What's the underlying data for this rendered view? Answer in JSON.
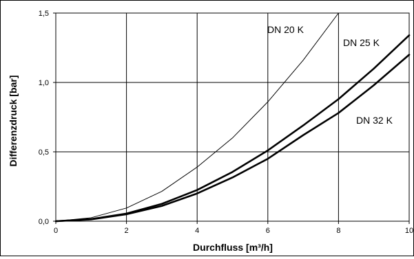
{
  "chart_data": {
    "type": "line",
    "xlabel": "Durchfluss [m³/h]",
    "ylabel": "Differenzdruck [bar]",
    "xlim": [
      0,
      10
    ],
    "ylim": [
      0,
      1.5
    ],
    "grid": true,
    "x_ticks": [
      0,
      2,
      4,
      6,
      8,
      10
    ],
    "x_tick_labels": [
      "0",
      "2",
      "4",
      "6",
      "8",
      "10"
    ],
    "y_ticks": [
      0,
      0.5,
      1.0,
      1.5
    ],
    "y_tick_labels": [
      "0,0",
      "0,5",
      "1,0",
      "1,5"
    ],
    "series": [
      {
        "name": "DN 20 K",
        "x": [
          0,
          1,
          2,
          3,
          4,
          5,
          6,
          7,
          8
        ],
        "y": [
          0,
          0.025,
          0.095,
          0.215,
          0.39,
          0.6,
          0.86,
          1.16,
          1.5
        ]
      },
      {
        "name": "DN 25 K",
        "x": [
          0,
          1,
          2,
          3,
          4,
          5,
          6,
          7,
          8,
          9,
          10
        ],
        "y": [
          0,
          0.015,
          0.055,
          0.125,
          0.225,
          0.355,
          0.51,
          0.69,
          0.88,
          1.1,
          1.34
        ]
      },
      {
        "name": "DN 32 K",
        "x": [
          0,
          1,
          2,
          3,
          4,
          5,
          6,
          7,
          8,
          9,
          10
        ],
        "y": [
          0,
          0.013,
          0.05,
          0.11,
          0.2,
          0.315,
          0.45,
          0.62,
          0.78,
          0.98,
          1.2
        ]
      }
    ],
    "line_widths": [
      "thin",
      "thick",
      "thick"
    ],
    "line_color": "#000000",
    "grid_color": "#000000"
  }
}
